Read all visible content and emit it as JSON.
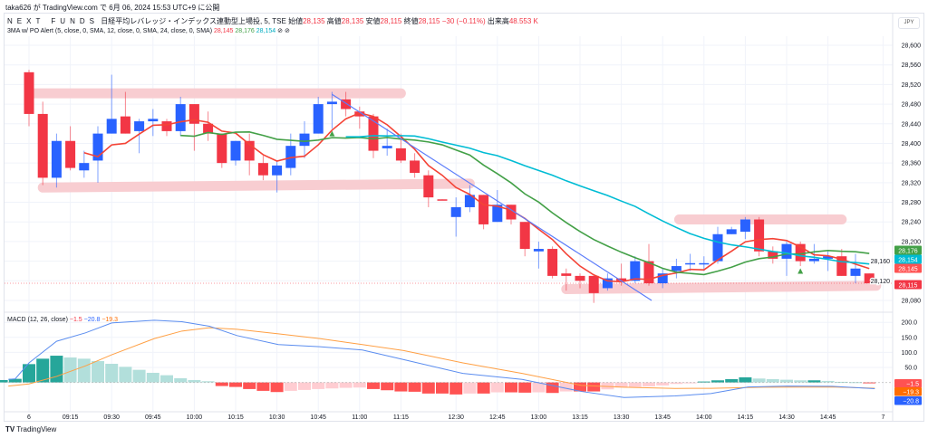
{
  "header": {
    "published": "taka626 が TradingView.com で 6月 06, 2024 15:53 UTC+9 に公開",
    "symbol_brand": "NEXT FUNDS",
    "symbol": "日経平均レバレッジ・インデックス連動型上場投, 5, TSE",
    "open_label": "始値",
    "open": "28,135",
    "high_label": "高値",
    "high": "28,135",
    "low_label": "安値",
    "low": "28,115",
    "close_label": "終値",
    "close": "28,115",
    "change": "−30 (−0.11%)",
    "volume_label": "出来高",
    "volume": "48.553 K",
    "indicator": "3MA w/ PO Alert (5, close, 0, SMA, 12, close, 0, SMA, 24, close, 0, SMA)",
    "ma1": "28,145",
    "ma2": "28,176",
    "ma3": "28,154",
    "hide_icon": "⊘",
    "settings_icon": "⊘"
  },
  "currency_button": "JPY",
  "macd_legend": {
    "title": "MACD (12, 26, close)",
    "hist": "−1.5",
    "macd": "−20.8",
    "signal": "−19.3"
  },
  "footer": {
    "logo_mark": "TV",
    "logo_text": "TradingView"
  },
  "colors": {
    "up": "#2962ff",
    "down": "#f23645",
    "sma5": "#f44336",
    "sma12": "#43a047",
    "sma24": "#00bcd4",
    "macd": "#5b8def",
    "signal": "#ff9f43",
    "hist_up": "#26a69a",
    "hist_up_light": "#b2dfdb",
    "hist_dn": "#ff5252",
    "hist_dn_light": "#ffcdd2",
    "band": "#f8cdd1"
  },
  "chart_data": {
    "type": "candlestick",
    "interval": "5",
    "price_ticks": [
      28600,
      28560,
      28520,
      28480,
      28440,
      28400,
      28360,
      28320,
      28280,
      28240,
      28200,
      28160,
      28120,
      28080
    ],
    "price_range": [
      28060,
      28620
    ],
    "time_ticks": [
      [
        1,
        "6"
      ],
      [
        4,
        "09:15"
      ],
      [
        7,
        "09:30"
      ],
      [
        10,
        "09:45"
      ],
      [
        13,
        "10:00"
      ],
      [
        16,
        "10:15"
      ],
      [
        19,
        "10:30"
      ],
      [
        22,
        "10:45"
      ],
      [
        25,
        "11:00"
      ],
      [
        28,
        "11:15"
      ],
      [
        32,
        "12:30"
      ],
      [
        35,
        "12:45"
      ],
      [
        38,
        "13:00"
      ],
      [
        41,
        "13:15"
      ],
      [
        44,
        "13:30"
      ],
      [
        47,
        "13:45"
      ],
      [
        50,
        "14:00"
      ],
      [
        53,
        "14:15"
      ],
      [
        56,
        "14:30"
      ],
      [
        59,
        "14:45"
      ],
      [
        63,
        "7"
      ]
    ],
    "ohlc": [
      [
        28545,
        28550,
        28435,
        28460
      ],
      [
        28460,
        28485,
        28315,
        28330
      ],
      [
        28330,
        28420,
        28310,
        28405
      ],
      [
        28405,
        28435,
        28345,
        28350
      ],
      [
        28345,
        28385,
        28330,
        28360
      ],
      [
        28365,
        28435,
        28320,
        28420
      ],
      [
        28420,
        28540,
        28420,
        28450
      ],
      [
        28455,
        28505,
        28420,
        28420
      ],
      [
        28425,
        28450,
        28380,
        28445
      ],
      [
        28445,
        28470,
        28415,
        28450
      ],
      [
        28445,
        28450,
        28415,
        28425
      ],
      [
        28425,
        28495,
        28415,
        28480
      ],
      [
        28480,
        28480,
        28385,
        28440
      ],
      [
        28440,
        28465,
        28405,
        28420
      ],
      [
        28420,
        28420,
        28350,
        28360
      ],
      [
        28365,
        28405,
        28355,
        28405
      ],
      [
        28405,
        28420,
        28335,
        28365
      ],
      [
        28360,
        28375,
        28325,
        28335
      ],
      [
        28335,
        28365,
        28300,
        28355
      ],
      [
        28350,
        28420,
        28335,
        28395
      ],
      [
        28395,
        28445,
        28370,
        28420
      ],
      [
        28420,
        28495,
        28420,
        28480
      ],
      [
        28480,
        28505,
        28430,
        28485
      ],
      [
        28490,
        28505,
        28455,
        28470
      ],
      [
        28465,
        28475,
        28430,
        28455
      ],
      [
        28455,
        28460,
        28370,
        28385
      ],
      [
        28390,
        28430,
        28375,
        28395
      ],
      [
        28390,
        28420,
        28360,
        28365
      ],
      [
        28365,
        28380,
        28330,
        28340
      ],
      [
        28335,
        28345,
        28270,
        28290
      ],
      [
        28286,
        28286,
        28284,
        28285
      ],
      [
        28250,
        28290,
        28210,
        28270
      ],
      [
        28270,
        28315,
        28260,
        28295
      ],
      [
        28295,
        28295,
        28225,
        28235
      ],
      [
        28240,
        28305,
        28240,
        28275
      ],
      [
        28275,
        28275,
        28235,
        28245
      ],
      [
        28240,
        28240,
        28170,
        28185
      ],
      [
        28180,
        28200,
        28145,
        28185
      ],
      [
        28185,
        28190,
        28125,
        28130
      ],
      [
        28135,
        28145,
        28100,
        28130
      ],
      [
        28130,
        28135,
        28105,
        28120
      ],
      [
        28130,
        28130,
        28075,
        28095
      ],
      [
        28105,
        28135,
        28100,
        28125
      ],
      [
        28125,
        28155,
        28110,
        28120
      ],
      [
        28120,
        28170,
        28115,
        28160
      ],
      [
        28160,
        28195,
        28110,
        28115
      ],
      [
        28115,
        28145,
        28105,
        28135
      ],
      [
        28140,
        28165,
        28125,
        28150
      ],
      [
        28155,
        28175,
        28140,
        28156
      ],
      [
        28155,
        28170,
        28140,
        28156
      ],
      [
        28160,
        28230,
        28155,
        28215
      ],
      [
        28215,
        28230,
        28215,
        28225
      ],
      [
        28220,
        28250,
        28205,
        28245
      ],
      [
        28245,
        28250,
        28170,
        28180
      ],
      [
        28180,
        28190,
        28155,
        28165
      ],
      [
        28165,
        28200,
        28130,
        28195
      ],
      [
        28195,
        28200,
        28150,
        28160
      ],
      [
        28160,
        28195,
        28155,
        28165
      ],
      [
        28165,
        28180,
        28140,
        28170
      ],
      [
        28170,
        28185,
        28130,
        28130
      ],
      [
        28130,
        28175,
        28115,
        28145
      ],
      [
        28135,
        28135,
        28115,
        28115
      ]
    ],
    "sma_periods": [
      5,
      12,
      24
    ],
    "last_price_labels": [
      {
        "value": "28,176",
        "color": "#43a047"
      },
      {
        "value": "28,154",
        "color": "#00bcd4"
      },
      {
        "value": "28,145",
        "color": "#ff5252"
      },
      {
        "value": "28,115",
        "color": "#f23645"
      }
    ],
    "drawings": {
      "bands": [
        {
          "from": [
            1.2,
            28502
          ],
          "to": [
            28,
            28502
          ]
        },
        {
          "from": [
            2,
            28310
          ],
          "to": [
            33,
            28318
          ]
        },
        {
          "from": [
            48.2,
            28245
          ],
          "to": [
            60,
            28245
          ]
        },
        {
          "from": [
            40,
            28103
          ],
          "to": [
            62.5,
            28110
          ]
        }
      ],
      "trend_lines": [
        {
          "from": [
            23,
            28500
          ],
          "to": [
            46.2,
            28080
          ]
        }
      ],
      "markers": [
        {
          "bar": 23,
          "price": 28420
        },
        {
          "bar": 57,
          "price": 28140
        }
      ]
    },
    "macd": {
      "ticks": [
        200,
        150,
        100,
        50
      ],
      "range": [
        -60,
        215
      ],
      "hist_pre": [
        8,
        12
      ],
      "hist": [
        61,
        79,
        89,
        83,
        79,
        71,
        62,
        52,
        42,
        32,
        24,
        14,
        8,
        4,
        -12,
        -15,
        -22,
        -28,
        -32,
        -28,
        -25,
        -22,
        -20,
        -18,
        -17,
        -22,
        -26,
        -30,
        -31,
        -37,
        -37,
        -40,
        -37,
        -37,
        -33,
        -33,
        -34,
        -33,
        -35,
        -30,
        -30,
        -30,
        -23,
        -17,
        -15,
        -13,
        -10,
        -5,
        -2,
        3,
        7,
        11,
        17,
        13,
        11,
        9,
        7,
        7,
        5,
        2,
        1,
        -1.5
      ],
      "macd_line": [
        [
          -0.5,
          10
        ],
        [
          0,
          12
        ],
        [
          1,
          65
        ],
        [
          3,
          137
        ],
        [
          5.1,
          165
        ],
        [
          7,
          198
        ],
        [
          10.1,
          207
        ],
        [
          12.1,
          202
        ],
        [
          14.1,
          187
        ],
        [
          16.1,
          156
        ],
        [
          19.1,
          126
        ],
        [
          22.1,
          119
        ],
        [
          25.2,
          108
        ],
        [
          28.2,
          76
        ],
        [
          32.5,
          30
        ],
        [
          36.8,
          10
        ],
        [
          41.1,
          -30
        ],
        [
          44.2,
          -50
        ],
        [
          47.9,
          -45
        ],
        [
          50.5,
          -37
        ],
        [
          53.2,
          -15
        ],
        [
          56.1,
          -12
        ],
        [
          59.3,
          -13
        ],
        [
          62.4,
          -20.8
        ]
      ],
      "signal_line": [
        [
          -0.5,
          -12
        ],
        [
          1,
          -5
        ],
        [
          3,
          20
        ],
        [
          5.1,
          55
        ],
        [
          7,
          92
        ],
        [
          10.1,
          146
        ],
        [
          12.1,
          171
        ],
        [
          14.1,
          182
        ],
        [
          16.1,
          177
        ],
        [
          19.1,
          162
        ],
        [
          22.1,
          146
        ],
        [
          25.2,
          126
        ],
        [
          28.2,
          106
        ],
        [
          32.5,
          65
        ],
        [
          36.8,
          30
        ],
        [
          41.1,
          -10
        ],
        [
          44.2,
          -16
        ],
        [
          47.9,
          -20
        ],
        [
          50.5,
          -19.5
        ],
        [
          54.3,
          -16
        ],
        [
          59.3,
          -15
        ],
        [
          62.4,
          -19.3
        ]
      ],
      "labels": [
        {
          "value": "−1.5",
          "color": "#ff5252"
        },
        {
          "value": "−19.3",
          "color": "#ff6d00"
        },
        {
          "value": "−20.8",
          "color": "#2962ff"
        }
      ]
    }
  }
}
